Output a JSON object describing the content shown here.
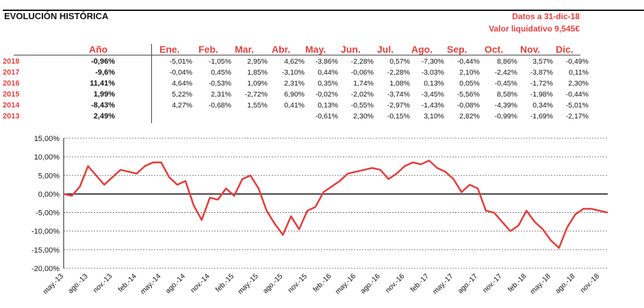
{
  "header": {
    "title": "EVOLUCIÓN HISTÓRICA",
    "as_of": "Datos a 31-dic-18",
    "nav": "Valor liquidativo 9,545€"
  },
  "table": {
    "columns": [
      "Año",
      "Ene.",
      "Feb.",
      "Mar.",
      "Abr.",
      "May.",
      "Jun.",
      "Jul.",
      "Ago.",
      "Sep.",
      "Oct.",
      "Nov.",
      "Dic."
    ],
    "rows": [
      {
        "year": "2018",
        "total": "-0,96%",
        "months": [
          "-5,01%",
          "-1,05%",
          "2,95%",
          "4,62%",
          "-3,86%",
          "-2,28%",
          "0,57%",
          "-7,30%",
          "-0,44%",
          "8,86%",
          "3,57%",
          "-0,49%"
        ]
      },
      {
        "year": "2017",
        "total": "-9,6%",
        "months": [
          "-0,04%",
          "0,45%",
          "1,85%",
          "-3,10%",
          "0,44%",
          "-0,06%",
          "-2,28%",
          "-3,03%",
          "2,10%",
          "-2,42%",
          "-3,87%",
          "0,11%"
        ]
      },
      {
        "year": "2016",
        "total": "11,41%",
        "months": [
          "4,64%",
          "-0,53%",
          "1,09%",
          "2,31%",
          "0,35%",
          "1,74%",
          "1,08%",
          "0,13%",
          "0,05%",
          "-0,45%",
          "-1,72%",
          "2,30%"
        ]
      },
      {
        "year": "2015",
        "total": "1,99%",
        "months": [
          "5,22%",
          "2,31%",
          "-2,72%",
          "6,90%",
          "-0,02%",
          "-2,02%",
          "-3,74%",
          "-3,45%",
          "-5,56%",
          "8,58%",
          "-1,98%",
          "-0,44%"
        ]
      },
      {
        "year": "2014",
        "total": "-8,43%",
        "months": [
          "4,27%",
          "-0,68%",
          "1,55%",
          "0,41%",
          "0,13%",
          "-0,55%",
          "-2,97%",
          "-1,43%",
          "-0,08%",
          "-4,39%",
          "0,34%",
          "-5,01%"
        ]
      },
      {
        "year": "2013",
        "total": "2,49%",
        "months": [
          "",
          "",
          "",
          "",
          "-0,61%",
          "2,30%",
          "-0,15%",
          "3,10%",
          "2,82%",
          "-0,99%",
          "-1,69%",
          "-2,17%"
        ]
      }
    ]
  },
  "chart_data": {
    "type": "line",
    "title": "",
    "xlabel": "",
    "ylabel": "",
    "ylim": [
      -20,
      15
    ],
    "grid": true,
    "line_color": "#e04040",
    "yticks": [
      "15,00%",
      "10,00%",
      "5,00%",
      "0,00%",
      "-5,00%",
      "-10,00%",
      "-15,00%",
      "-20,00%"
    ],
    "xticks": [
      "may.-13",
      "ago.-13",
      "nov.-13",
      "feb.-14",
      "may.-14",
      "ago.-14",
      "nov.-14",
      "feb.-15",
      "may.-15",
      "ago.-15",
      "nov.-15",
      "feb.-16",
      "may.-16",
      "ago.-16",
      "nov.-16",
      "feb.-17",
      "may.-17",
      "ago.-17",
      "nov.-17",
      "feb.-18",
      "may.-18",
      "ago.-18",
      "nov.-18"
    ],
    "series": [
      {
        "x": [
          "may.-13",
          "jun.-13",
          "jul.-13",
          "ago.-13",
          "sep.-13",
          "oct.-13",
          "nov.-13",
          "dic.-13",
          "ene.-14",
          "feb.-14",
          "mar.-14",
          "abr.-14",
          "may.-14",
          "jun.-14",
          "jul.-14",
          "ago.-14",
          "sep.-14",
          "oct.-14",
          "nov.-14",
          "dic.-14",
          "ene.-15",
          "feb.-15",
          "mar.-15",
          "abr.-15",
          "may.-15",
          "jun.-15",
          "jul.-15",
          "ago.-15",
          "sep.-15",
          "oct.-15",
          "nov.-15",
          "dic.-15",
          "ene.-16",
          "feb.-16",
          "mar.-16",
          "abr.-16",
          "may.-16",
          "jun.-16",
          "jul.-16",
          "ago.-16",
          "sep.-16",
          "oct.-16",
          "nov.-16",
          "dic.-16",
          "ene.-17",
          "feb.-17",
          "mar.-17",
          "abr.-17",
          "may.-17",
          "jun.-17",
          "jul.-17",
          "ago.-17",
          "sep.-17",
          "oct.-17",
          "nov.-17",
          "dic.-17",
          "ene.-18",
          "feb.-18",
          "mar.-18",
          "abr.-18",
          "may.-18",
          "jun.-18",
          "jul.-18",
          "ago.-18",
          "sep.-18",
          "oct.-18",
          "nov.-18",
          "dic.-18"
        ],
        "values": [
          0,
          -0.5,
          2.0,
          7.5,
          5.0,
          2.5,
          4.5,
          6.5,
          6.0,
          5.5,
          7.5,
          8.5,
          8.5,
          4.5,
          2.5,
          3.5,
          -3.0,
          -7.0,
          -1.0,
          -1.5,
          1.5,
          -0.5,
          4.0,
          5.0,
          1.5,
          -4.5,
          -8.0,
          -11.0,
          -6.0,
          -9.5,
          -4.5,
          -3.5,
          0.5,
          2.0,
          3.5,
          5.5,
          6.0,
          6.5,
          7.0,
          6.5,
          4.0,
          5.5,
          7.5,
          8.5,
          8.0,
          9.0,
          7.0,
          6.0,
          4.0,
          0.5,
          2.5,
          1.5,
          -4.5,
          -5.0,
          -7.5,
          -10.0,
          -8.5,
          -4.5,
          -7.5,
          -9.5,
          -12.5,
          -14.5,
          -9.0,
          -5.5,
          -4.0,
          -4.0,
          -4.5,
          -5.0
        ]
      }
    ]
  }
}
